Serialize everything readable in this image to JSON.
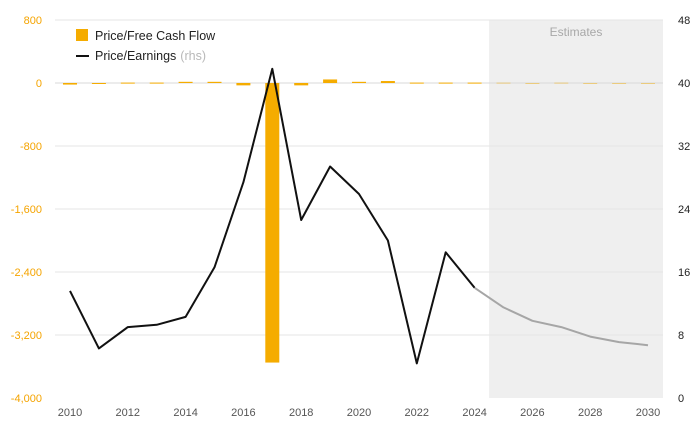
{
  "chart_data": {
    "type": "bar+line",
    "x": [
      2010,
      2011,
      2012,
      2013,
      2014,
      2015,
      2016,
      2017,
      2018,
      2019,
      2020,
      2021,
      2022,
      2023,
      2024,
      2025,
      2026,
      2027,
      2028,
      2029,
      2030
    ],
    "x_ticks": [
      "2010",
      "2012",
      "2014",
      "2016",
      "2018",
      "2020",
      "2022",
      "2024",
      "2026",
      "2028",
      "2030"
    ],
    "estimate_start": 2024.5,
    "estimates_label": "Estimates",
    "left_axis": {
      "ylim": [
        -4000,
        800
      ],
      "ticks": [
        "800",
        "0",
        "-800",
        "-1,600",
        "-2,400",
        "-3,200",
        "-4,000"
      ],
      "tick_values": [
        800,
        0,
        -800,
        -1600,
        -2400,
        -3200,
        -4000
      ]
    },
    "right_axis": {
      "ylim": [
        0,
        48
      ],
      "ticks": [
        "48",
        "40",
        "32",
        "24",
        "16",
        "8",
        "0"
      ],
      "tick_values": [
        48,
        40,
        32,
        24,
        16,
        8,
        0
      ]
    },
    "series": [
      {
        "name": "Price/Free Cash Flow",
        "kind": "bar",
        "axis": "left",
        "values": [
          -20,
          0,
          5,
          5,
          15,
          15,
          -30,
          -3550,
          -30,
          45,
          15,
          25,
          5,
          5,
          5,
          5,
          0,
          5,
          0,
          0,
          0
        ]
      },
      {
        "name": "Price/Earnings",
        "name_suffix": "(rhs)",
        "kind": "line",
        "axis": "right",
        "values": [
          13.6,
          6.3,
          9.0,
          9.3,
          10.3,
          16.6,
          27.4,
          41.8,
          22.6,
          29.4,
          25.9,
          20.0,
          4.4,
          18.5,
          14.0,
          11.5,
          9.8,
          9.0,
          7.8,
          7.1,
          6.7
        ]
      }
    ],
    "colors": {
      "bar": "#f5ac00",
      "line": "#111111",
      "line_estimate": "#a6a6a6",
      "estimate_band": "#efefef",
      "left_ticks": "#f5a400"
    },
    "legend": {
      "placement": "top-left"
    },
    "grid": true
  }
}
